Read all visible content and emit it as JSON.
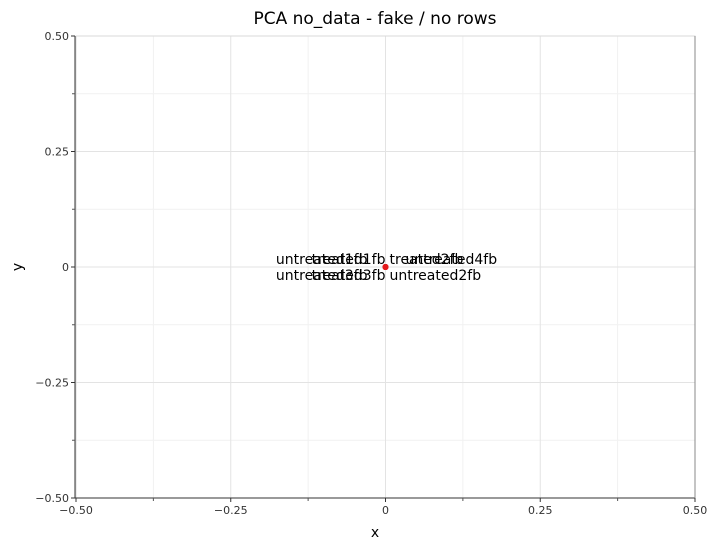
{
  "chart_data": {
    "type": "scatter",
    "title": "PCA no_data - fake / no rows",
    "xlabel": "x",
    "ylabel": "y",
    "xlim": [
      -0.5,
      0.5
    ],
    "ylim": [
      -0.5,
      0.5
    ],
    "x_ticks": [
      -0.5,
      -0.25,
      0,
      0.25,
      0.5
    ],
    "x_tick_labels": [
      "−0.50",
      "−0.25",
      "0",
      "0.25",
      "0.50"
    ],
    "y_ticks": [
      -0.5,
      -0.25,
      0,
      0.25,
      0.5
    ],
    "y_tick_labels": [
      "−0.50",
      "−0.25",
      "0",
      "0.25",
      "0.50"
    ],
    "grid": true,
    "point_color": "#e41a1c",
    "points": [
      {
        "x": 0,
        "y": 0,
        "label": "treated1fb"
      },
      {
        "x": 0,
        "y": 0,
        "label": "untreated1fb"
      },
      {
        "x": 0,
        "y": 0,
        "label": "treated2fb"
      },
      {
        "x": 0,
        "y": 0,
        "label": "untreated4fb"
      },
      {
        "x": 0,
        "y": 0,
        "label": "treated3fb"
      },
      {
        "x": 0,
        "y": 0,
        "label": "untreated3fb"
      },
      {
        "x": 0,
        "y": 0,
        "label": "untreated2fb"
      }
    ]
  }
}
